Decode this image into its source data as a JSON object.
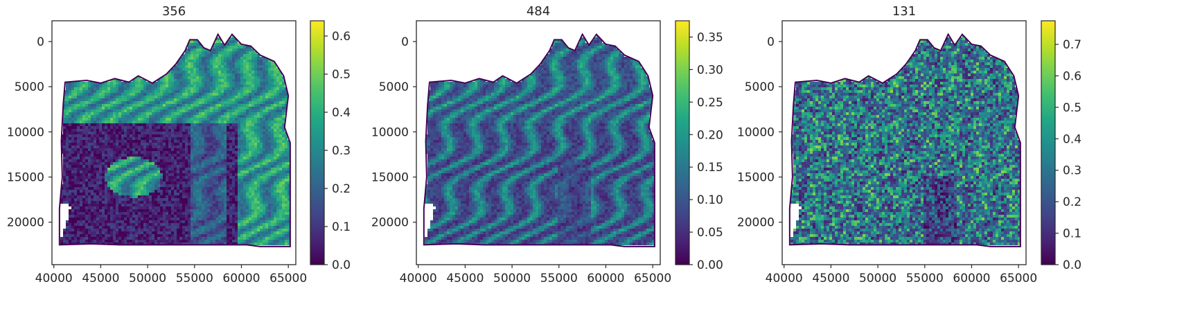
{
  "chart_data": [
    {
      "type": "heatmap",
      "title": "356",
      "colormap": "viridis",
      "xlabel": "",
      "ylabel": "",
      "xlim": [
        39800,
        65800
      ],
      "ylim": [
        24700,
        -2300
      ],
      "x_ticks": [
        40000,
        45000,
        50000,
        55000,
        60000,
        65000
      ],
      "x_tick_labels": [
        "40000",
        "45000",
        "50000",
        "55000",
        "60000",
        "65000"
      ],
      "y_ticks": [
        0,
        5000,
        10000,
        15000,
        20000
      ],
      "y_tick_labels": [
        "0",
        "5000",
        "10000",
        "15000",
        "20000"
      ],
      "colorbar": {
        "range": [
          0.0,
          0.64
        ],
        "ticks": [
          0.0,
          0.1,
          0.2,
          0.3,
          0.4,
          0.5,
          0.6
        ],
        "tick_labels": [
          "0.0",
          "0.1",
          "0.2",
          "0.3",
          "0.4",
          "0.5",
          "0.6"
        ]
      }
    },
    {
      "type": "heatmap",
      "title": "484",
      "colormap": "viridis",
      "xlabel": "",
      "ylabel": "",
      "xlim": [
        39800,
        65800
      ],
      "ylim": [
        24700,
        -2300
      ],
      "x_ticks": [
        40000,
        45000,
        50000,
        55000,
        60000,
        65000
      ],
      "x_tick_labels": [
        "40000",
        "45000",
        "50000",
        "55000",
        "60000",
        "65000"
      ],
      "y_ticks": [
        0,
        5000,
        10000,
        15000,
        20000
      ],
      "y_tick_labels": [
        "0",
        "5000",
        "10000",
        "15000",
        "20000"
      ],
      "colorbar": {
        "range": [
          0.0,
          0.375
        ],
        "ticks": [
          0.0,
          0.05,
          0.1,
          0.15,
          0.2,
          0.25,
          0.3,
          0.35
        ],
        "tick_labels": [
          "0.00",
          "0.05",
          "0.10",
          "0.15",
          "0.20",
          "0.25",
          "0.30",
          "0.35"
        ]
      }
    },
    {
      "type": "heatmap",
      "title": "131",
      "colormap": "viridis",
      "xlabel": "",
      "ylabel": "",
      "xlim": [
        39800,
        65800
      ],
      "ylim": [
        24700,
        -2300
      ],
      "x_ticks": [
        40000,
        45000,
        50000,
        55000,
        60000,
        65000
      ],
      "x_tick_labels": [
        "40000",
        "45000",
        "50000",
        "55000",
        "60000",
        "65000"
      ],
      "y_ticks": [
        0,
        5000,
        10000,
        15000,
        20000
      ],
      "y_tick_labels": [
        "0",
        "5000",
        "10000",
        "15000",
        "20000"
      ],
      "colorbar": {
        "range": [
          0.0,
          0.775
        ],
        "ticks": [
          0.0,
          0.1,
          0.2,
          0.3,
          0.4,
          0.5,
          0.6,
          0.7
        ],
        "tick_labels": [
          "0.0",
          "0.1",
          "0.2",
          "0.3",
          "0.4",
          "0.5",
          "0.6",
          "0.7"
        ]
      }
    }
  ]
}
